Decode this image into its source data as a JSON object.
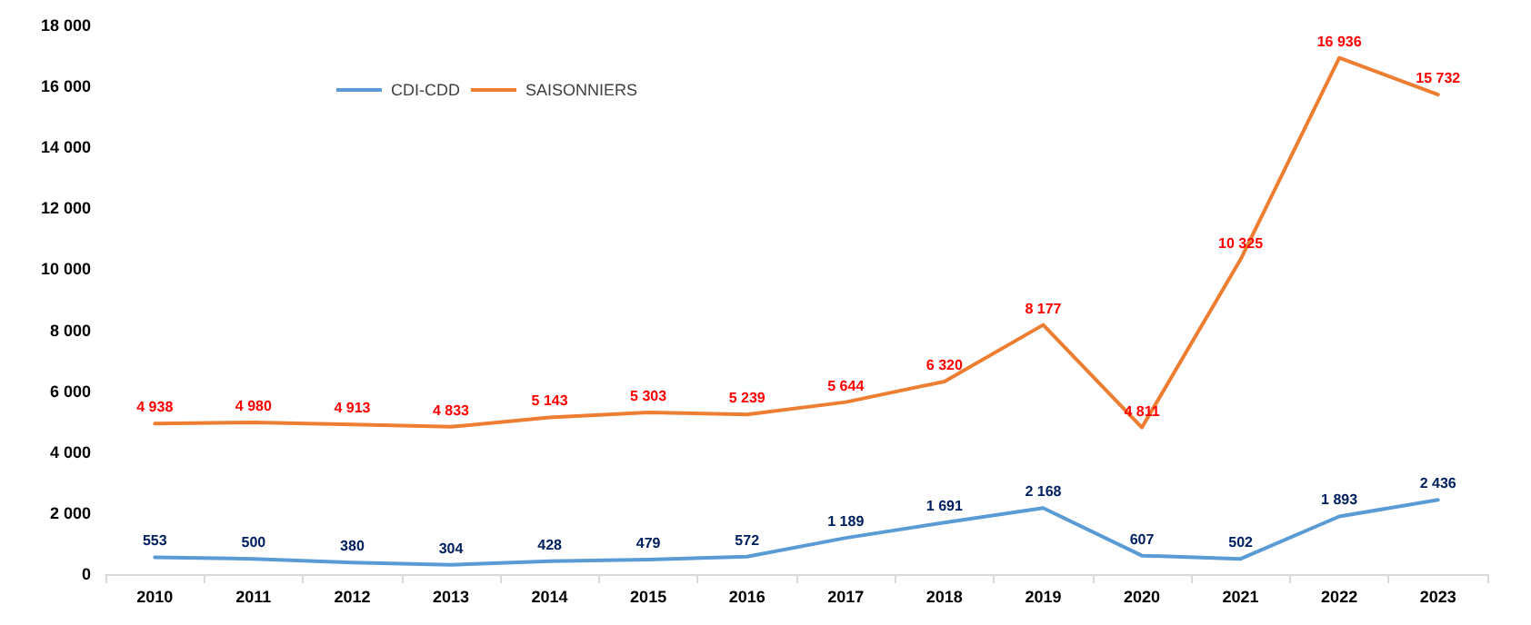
{
  "chart_data": {
    "type": "line",
    "categories": [
      "2010",
      "2011",
      "2012",
      "2013",
      "2014",
      "2015",
      "2016",
      "2017",
      "2018",
      "2019",
      "2020",
      "2021",
      "2022",
      "2023"
    ],
    "series": [
      {
        "name": "CDI-CDD",
        "color": "#5b9bd5",
        "values": [
          553,
          500,
          380,
          304,
          428,
          479,
          572,
          1189,
          1691,
          2168,
          607,
          502,
          1893,
          2436
        ],
        "value_labels": [
          "553",
          "500",
          "380",
          "304",
          "428",
          "479",
          "572",
          "1 189",
          "1 691",
          "2 168",
          "607",
          "502",
          "1 893",
          "2 436"
        ]
      },
      {
        "name": "SAISONNIERS",
        "color": "#ed7d31",
        "values": [
          4938,
          4980,
          4913,
          4833,
          5143,
          5303,
          5239,
          5644,
          6320,
          8177,
          4811,
          10325,
          16936,
          15732
        ],
        "value_labels": [
          "4 938",
          "4 980",
          "4 913",
          "4 833",
          "5 143",
          "5 303",
          "5 239",
          "5 644",
          "6 320",
          "8 177",
          "4 811",
          "10 325",
          "16 936",
          "15 732"
        ]
      }
    ],
    "ylim": [
      0,
      18000
    ],
    "yticks": [
      0,
      {
        "value": 2000,
        "label": "2 000"
      },
      {
        "value": 4000,
        "label": "4 000"
      },
      {
        "value": 6000,
        "label": "6 000"
      },
      {
        "value": 8000,
        "label": "8 000"
      },
      {
        "value": 10000,
        "label": "10 000"
      },
      {
        "value": 12000,
        "label": "12 000"
      },
      {
        "value": 14000,
        "label": "14 000"
      },
      {
        "value": 16000,
        "label": "16 000"
      },
      {
        "value": 18000,
        "label": "18 000"
      }
    ],
    "legend": "top left",
    "marker": "none",
    "line_style": "solid"
  }
}
